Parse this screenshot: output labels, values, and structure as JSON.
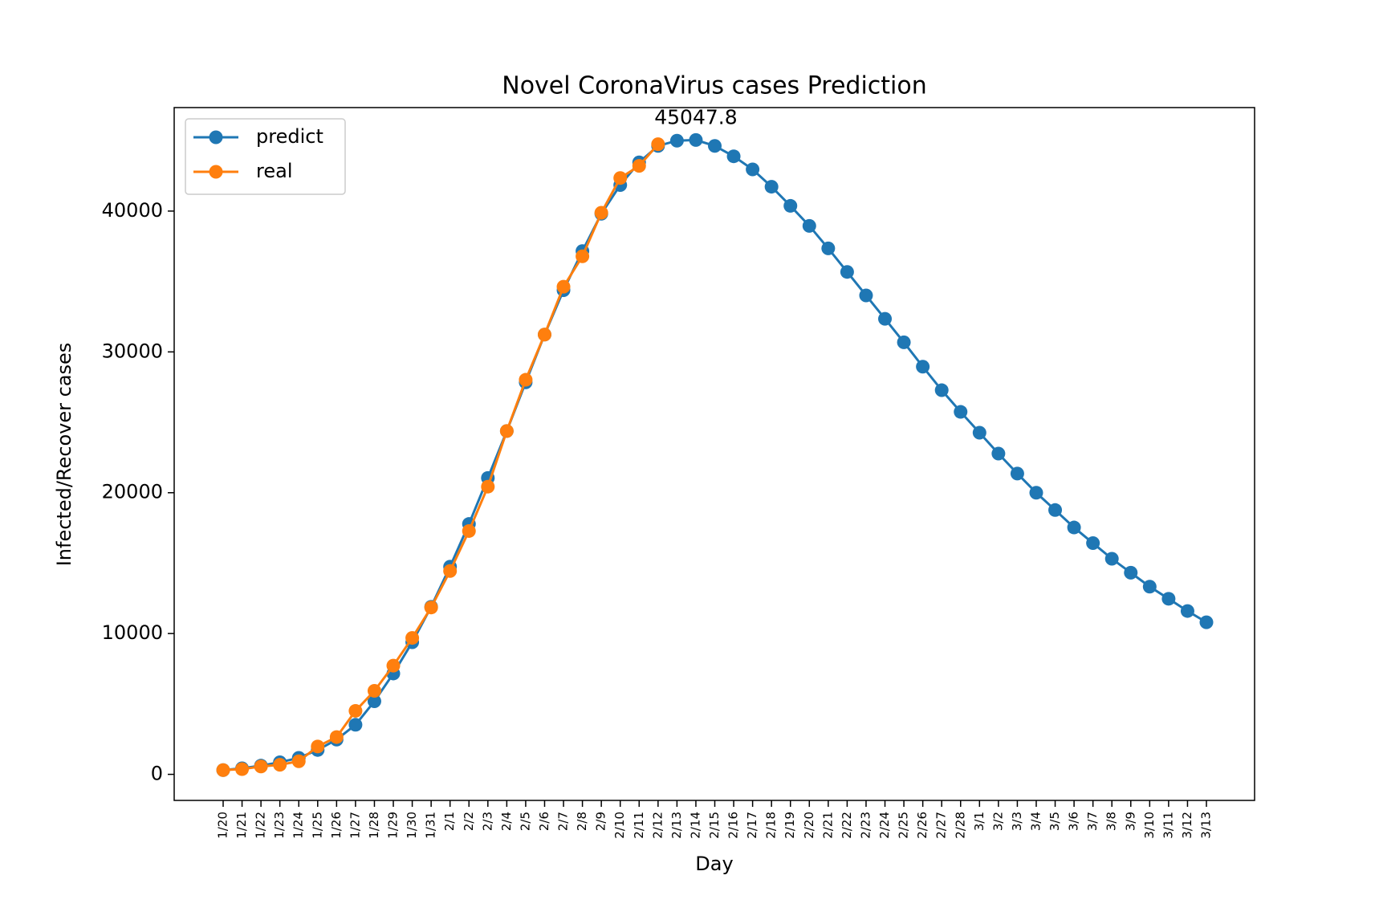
{
  "chart_data": {
    "type": "line",
    "title": "Novel CoronaVirus cases Prediction",
    "x_label": "Day",
    "y_label": "Infected/Recover cases",
    "categories": [
      "1/20",
      "1/21",
      "1/22",
      "1/23",
      "1/24",
      "1/25",
      "1/26",
      "1/27",
      "1/28",
      "1/29",
      "1/30",
      "1/31",
      "2/1",
      "2/2",
      "2/3",
      "2/4",
      "2/5",
      "2/6",
      "2/7",
      "2/8",
      "2/9",
      "2/10",
      "2/11",
      "2/12",
      "2/13",
      "2/14",
      "2/15",
      "2/16",
      "2/17",
      "2/18",
      "2/19",
      "2/20",
      "2/21",
      "2/22",
      "2/23",
      "2/24",
      "2/25",
      "2/26",
      "2/27",
      "2/28",
      "3/1",
      "3/2",
      "3/3",
      "3/4",
      "3/5",
      "3/6",
      "3/7",
      "3/8",
      "3/9",
      "3/10",
      "3/11",
      "3/12",
      "3/13"
    ],
    "series": [
      {
        "name": "predict",
        "color": "#1f77b4",
        "values": [
          300,
          430,
          620,
          860,
          1170,
          1730,
          2470,
          3520,
          5190,
          7160,
          9380,
          11900,
          14750,
          17780,
          21050,
          24380,
          27840,
          31230,
          34380,
          37160,
          39810,
          41850,
          43460,
          44630,
          45000,
          45047.8,
          44630,
          43890,
          42960,
          41730,
          40370,
          38950,
          37350,
          35680,
          34010,
          32350,
          30680,
          28950,
          27280,
          25740,
          24260,
          22780,
          21360,
          20000,
          18770,
          17530,
          16420,
          15310,
          14320,
          13330,
          12470,
          11600,
          10800
        ],
        "value_labels": [
          null,
          null,
          null,
          null,
          null,
          null,
          null,
          null,
          null,
          null,
          null,
          null,
          null,
          null,
          null,
          null,
          null,
          null,
          null,
          null,
          null,
          null,
          null,
          null,
          null,
          "45047.8",
          null,
          null,
          null,
          null,
          null,
          null,
          null,
          null,
          null,
          null,
          null,
          null,
          null,
          null,
          null,
          null,
          null,
          null,
          null,
          null,
          null,
          null,
          null,
          null,
          null,
          null,
          null
        ]
      },
      {
        "name": "real",
        "color": "#ff7f0e",
        "values": [
          300,
          370,
          560,
          680,
          930,
          1980,
          2650,
          4510,
          5930,
          7720,
          9690,
          11850,
          14440,
          17280,
          20430,
          24380,
          28020,
          31230,
          34630,
          36790,
          39880,
          42350,
          43210,
          44750,
          null,
          null,
          null,
          null,
          null,
          null,
          null,
          null,
          null,
          null,
          null,
          null,
          null,
          null,
          null,
          null,
          null,
          null,
          null,
          null,
          null,
          null,
          null,
          null,
          null,
          null,
          null,
          null,
          null
        ]
      }
    ],
    "ylim": [
      -1850,
      47350
    ],
    "yticks": [
      0,
      10000,
      20000,
      30000,
      40000
    ],
    "legend": "upper left",
    "grid": false
  }
}
